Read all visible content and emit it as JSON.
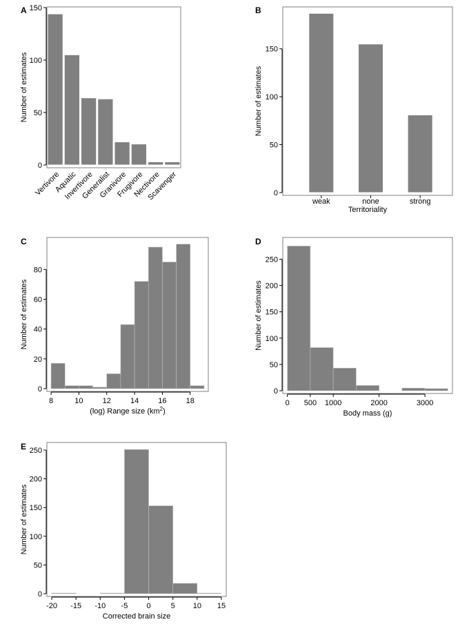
{
  "chart_data": [
    {
      "id": "A",
      "type": "bar",
      "panel_label": "A",
      "categories": [
        "Vertivore",
        "Aquatic",
        "Invertivore",
        "Generalist",
        "Granivore",
        "Frugivore",
        "Nectivore",
        "Scavenger"
      ],
      "values": [
        144,
        105,
        64,
        63,
        22,
        20,
        3,
        3
      ],
      "xlabel": "",
      "ylabel": "Number of estimates",
      "ylim": [
        0,
        150
      ],
      "yticks": [
        0,
        50,
        100,
        150
      ]
    },
    {
      "id": "B",
      "type": "bar",
      "panel_label": "B",
      "categories": [
        "weak",
        "none",
        "strong"
      ],
      "values": [
        187,
        155,
        81
      ],
      "xlabel": "Territoriality",
      "ylabel": "Number of estimates",
      "ylim": [
        0,
        193
      ],
      "yticks": [
        0,
        50,
        100,
        150
      ]
    },
    {
      "id": "C",
      "type": "bar",
      "subtype": "histogram",
      "panel_label": "C",
      "bin_edges": [
        8,
        9,
        10,
        11,
        12,
        13,
        14,
        15,
        16,
        17,
        18,
        19
      ],
      "values": [
        17,
        2,
        2,
        1,
        10,
        43,
        72,
        95,
        85,
        97,
        2
      ],
      "xlabel_main": "(log) Range size (km",
      "xlabel_sup": "2",
      "xlabel_end": ")",
      "ylabel": "Number of estimates",
      "xlim": [
        7.7,
        19.3
      ],
      "ylim": [
        0,
        101
      ],
      "xticks": [
        8,
        10,
        12,
        14,
        16,
        18
      ],
      "yticks": [
        0,
        20,
        40,
        60,
        80
      ]
    },
    {
      "id": "D",
      "type": "bar",
      "subtype": "histogram",
      "panel_label": "D",
      "bin_edges": [
        0,
        500,
        1000,
        1500,
        2000,
        2500,
        3000,
        3500
      ],
      "values": [
        275,
        82,
        43,
        10,
        0,
        5,
        4
      ],
      "xlabel": "Body mass (g)",
      "ylabel": "Number of estimates",
      "xlim": [
        -100,
        3600
      ],
      "ylim": [
        0,
        290
      ],
      "xticks": [
        0,
        500,
        1000,
        2000,
        3000
      ],
      "yticks": [
        0,
        50,
        100,
        150,
        200,
        250
      ]
    },
    {
      "id": "E",
      "type": "bar",
      "subtype": "histogram",
      "panel_label": "E",
      "bin_edges": [
        -20,
        -15,
        -10,
        -5,
        0,
        5,
        10,
        15
      ],
      "values": [
        1,
        0,
        1,
        251,
        153,
        18,
        1
      ],
      "xlabel": "Corrected brain size",
      "ylabel": "Number of estimates",
      "xlim": [
        -21,
        16
      ],
      "ylim": [
        0,
        262
      ],
      "xticks": [
        -20,
        -15,
        -10,
        -5,
        0,
        5,
        10,
        15
      ],
      "yticks": [
        0,
        50,
        100,
        150,
        200,
        250
      ]
    }
  ]
}
